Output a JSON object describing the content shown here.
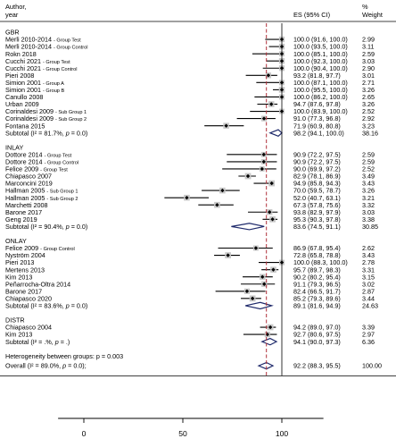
{
  "chart_data": {
    "type": "forest",
    "header": {
      "study_line1": "Author,",
      "study_line2": "year",
      "es_label": "ES (95% CI)",
      "weight_line1": "%",
      "weight_line2": "Weight"
    },
    "xaxis": {
      "ticks": [
        0,
        50,
        100
      ],
      "xlim": [
        -13,
        121
      ]
    },
    "overall_line": 92.2,
    "groups": [
      {
        "name": "GBR",
        "rows": [
          {
            "author": "Merli 2010-2014",
            "sub": "- Group Test",
            "es": 100.0,
            "lo": 91.6,
            "hi": 100.0,
            "ci": "100.0 (91.6, 100.0)",
            "weight": "2.99"
          },
          {
            "author": "Merli 2010-2014",
            "sub": "- Group Control",
            "es": 100.0,
            "lo": 93.5,
            "hi": 100.0,
            "ci": "100.0 (93.5, 100.0)",
            "weight": "3.11"
          },
          {
            "author": "Rokn 2018",
            "sub": "",
            "es": 100.0,
            "lo": 85.1,
            "hi": 100.0,
            "ci": "100.0 (85.1, 100.0)",
            "weight": "2.59"
          },
          {
            "author": "Cucchi 2021",
            "sub": "- Group Test",
            "es": 100.0,
            "lo": 92.3,
            "hi": 100.0,
            "ci": "100.0 (92.3, 100.0)",
            "weight": "3.03"
          },
          {
            "author": "Cucchi 2021",
            "sub": "- Group Control",
            "es": 100.0,
            "lo": 90.4,
            "hi": 100.0,
            "ci": "100.0 (90.4, 100.0)",
            "weight": "2.90"
          },
          {
            "author": "Pieri 2008",
            "sub": "",
            "es": 93.2,
            "lo": 81.8,
            "hi": 97.7,
            "ci": "93.2 (81.8, 97.7)",
            "weight": "3.01"
          },
          {
            "author": "Simion 2001",
            "sub": "- Group A",
            "es": 100.0,
            "lo": 87.1,
            "hi": 100.0,
            "ci": "100.0 (87.1, 100.0)",
            "weight": "2.71"
          },
          {
            "author": "Simion 2001",
            "sub": "- Group B",
            "es": 100.0,
            "lo": 95.5,
            "hi": 100.0,
            "ci": "100.0 (95.5, 100.0)",
            "weight": "3.26"
          },
          {
            "author": "Canullo 2008",
            "sub": "",
            "es": 100.0,
            "lo": 86.2,
            "hi": 100.0,
            "ci": "100.0 (86.2, 100.0)",
            "weight": "2.65"
          },
          {
            "author": "Urban 2009",
            "sub": "",
            "es": 94.7,
            "lo": 87.6,
            "hi": 97.8,
            "ci": "94.7 (87.6, 97.8)",
            "weight": "3.26"
          },
          {
            "author": "Corinaldesi 2009",
            "sub": "- Sub Group 1",
            "es": 100.0,
            "lo": 83.9,
            "hi": 100.0,
            "ci": "100.0 (83.9, 100.0)",
            "weight": "2.52"
          },
          {
            "author": "Corinaldesi 2009",
            "sub": "- Sub Group 2",
            "es": 91.0,
            "lo": 77.3,
            "hi": 96.8,
            "ci": "91.0 (77.3, 96.8)",
            "weight": "2.92"
          },
          {
            "author": "Fontana 2015",
            "sub": "",
            "es": 71.9,
            "lo": 60.9,
            "hi": 80.8,
            "ci": "71.9 (60.9, 80.8)",
            "weight": "3.23"
          }
        ],
        "subtotal": {
          "label": "Subtotal",
          "stat": "(I² = 81.7%, p = 0.0)",
          "es": 98.2,
          "lo": 94.1,
          "hi": 100.0,
          "ci": "98.2 (94.1, 100.0)",
          "weight": "38.16"
        }
      },
      {
        "name": "INLAY",
        "rows": [
          {
            "author": "Dottore 2014",
            "sub": "- Group Test",
            "es": 90.9,
            "lo": 72.2,
            "hi": 97.5,
            "ci": "90.9 (72.2, 97.5)",
            "weight": "2.59"
          },
          {
            "author": "Dottore 2014",
            "sub": "- Group Control",
            "es": 90.9,
            "lo": 72.2,
            "hi": 97.5,
            "ci": "90.9 (72.2, 97.5)",
            "weight": "2.59"
          },
          {
            "author": "Felice 2009",
            "sub": "- Group Test",
            "es": 90.0,
            "lo": 69.9,
            "hi": 97.2,
            "ci": "90.0 (69.9, 97.2)",
            "weight": "2.52"
          },
          {
            "author": "Chiapasco 2007",
            "sub": "",
            "es": 82.9,
            "lo": 78.1,
            "hi": 86.9,
            "ci": "82.9 (78.1, 86.9)",
            "weight": "3.49"
          },
          {
            "author": "Marconcini 2019",
            "sub": "",
            "es": 94.9,
            "lo": 85.8,
            "hi": 94.3,
            "ci": "94.9 (85.8, 94.3)",
            "weight": "3.43"
          },
          {
            "author": "Hallman 2005",
            "sub": "- Sub Group 1",
            "es": 70.0,
            "lo": 59.5,
            "hi": 78.7,
            "ci": "70.0 (59.5, 78.7)",
            "weight": "3.26"
          },
          {
            "author": "Hallman 2005",
            "sub": "- Sub Group 2",
            "es": 52.0,
            "lo": 40.7,
            "hi": 63.1,
            "ci": "52.0 (40.7, 63.1)",
            "weight": "3.21"
          },
          {
            "author": "Marchetti 2008",
            "sub": "",
            "es": 67.3,
            "lo": 57.8,
            "hi": 75.6,
            "ci": "67.3 (57.8, 75.6)",
            "weight": "3.32"
          },
          {
            "author": "Barone 2017",
            "sub": "",
            "es": 93.8,
            "lo": 82.9,
            "hi": 97.9,
            "ci": "93.8 (82.9, 97.9)",
            "weight": "3.03"
          },
          {
            "author": "Geng 2019",
            "sub": "",
            "es": 95.3,
            "lo": 90.3,
            "hi": 97.8,
            "ci": "95.3 (90.3, 97.8)",
            "weight": "3.38"
          }
        ],
        "subtotal": {
          "label": "Subtotal",
          "stat": "(I² = 90.4%, p = 0.0)",
          "es": 83.6,
          "lo": 74.5,
          "hi": 91.1,
          "ci": "83.6 (74.5, 91.1)",
          "weight": "30.85"
        }
      },
      {
        "name": "ONLAY",
        "rows": [
          {
            "author": "Felice 2009",
            "sub": "- Group Control",
            "es": 86.9,
            "lo": 67.8,
            "hi": 95.4,
            "ci": "86.9 (67.8, 95.4)",
            "weight": "2.62"
          },
          {
            "author": "Nyström 2004",
            "sub": "",
            "es": 72.8,
            "lo": 65.8,
            "hi": 78.8,
            "ci": "72.8 (65.8, 78.8)",
            "weight": "3.43"
          },
          {
            "author": "Pieri 2013",
            "sub": "",
            "es": 100.0,
            "lo": 88.3,
            "hi": 100.0,
            "ci": "100.0 (88.3, 100.0)",
            "weight": "2.78"
          },
          {
            "author": "Mertens 2013",
            "sub": "",
            "es": 95.7,
            "lo": 89.7,
            "hi": 98.3,
            "ci": "95.7 (89.7, 98.3)",
            "weight": "3.31"
          },
          {
            "author": "Kim 2013",
            "sub": "",
            "es": 90.2,
            "lo": 80.2,
            "hi": 95.4,
            "ci": "90.2 (80.2, 95.4)",
            "weight": "3.15"
          },
          {
            "author": "Peñarrocha-Oltra 2014",
            "sub": "",
            "es": 91.1,
            "lo": 79.3,
            "hi": 96.5,
            "ci": "91.1 (79.3, 96.5)",
            "weight": "3.02"
          },
          {
            "author": "Barone 2017",
            "sub": "",
            "es": 82.4,
            "lo": 66.5,
            "hi": 91.7,
            "ci": "82.4 (66.5, 91.7)",
            "weight": "2.87"
          },
          {
            "author": "Chiapasco 2020",
            "sub": "",
            "es": 85.2,
            "lo": 79.3,
            "hi": 89.6,
            "ci": "85.2 (79.3, 89.6)",
            "weight": "3.44"
          }
        ],
        "subtotal": {
          "label": "Subtotal",
          "stat": "(I² = 83.6%, p = 0.0)",
          "es": 89.1,
          "lo": 81.6,
          "hi": 94.9,
          "ci": "89.1 (81.6, 94.9)",
          "weight": "24.63"
        }
      },
      {
        "name": "DISTR",
        "rows": [
          {
            "author": "Chiapasco 2004",
            "sub": "",
            "es": 94.2,
            "lo": 89.0,
            "hi": 97.0,
            "ci": "94.2 (89.0, 97.0)",
            "weight": "3.39"
          },
          {
            "author": "Kim 2013",
            "sub": "",
            "es": 92.7,
            "lo": 80.6,
            "hi": 97.5,
            "ci": "92.7 (80.6, 97.5)",
            "weight": "2.97"
          }
        ],
        "subtotal": {
          "label": "Subtotal",
          "stat": "(I² = .%, p = .)",
          "es": 94.1,
          "lo": 90.0,
          "hi": 97.3,
          "ci": "94.1 (90.0, 97.3)",
          "weight": "6.36"
        }
      }
    ],
    "heterogeneity": "Heterogeneity between groups: p = 0.003",
    "overall": {
      "label": "Overall",
      "stat": "(I² = 89.0%, p = 0.0);",
      "es": 92.2,
      "lo": 88.3,
      "hi": 95.5,
      "ci": "92.2 (88.3, 95.5)",
      "weight": "100.00"
    }
  }
}
